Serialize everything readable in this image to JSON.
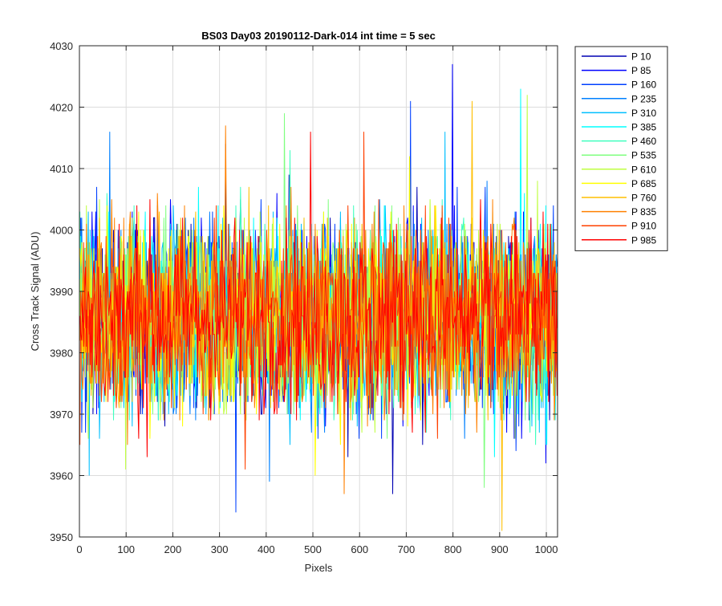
{
  "chart_data": {
    "type": "line",
    "title": "BS03 Day03 20190112-Dark-014 int time = 5 sec",
    "xlabel": "Pixels",
    "ylabel": "Cross Track Signal (ADU)",
    "xlim": [
      0,
      1024
    ],
    "ylim": [
      3950,
      4030
    ],
    "x_ticks": [
      0,
      100,
      200,
      300,
      400,
      500,
      600,
      700,
      800,
      900,
      1000
    ],
    "y_ticks": [
      3950,
      3960,
      3970,
      3980,
      3990,
      4000,
      4010,
      4020,
      4030
    ],
    "grid": true,
    "legend_position": "outside-right",
    "x_range": [
      1,
      1024
    ],
    "mean_level": 3986,
    "typical_range": [
      3970,
      4003
    ],
    "series": [
      {
        "name": "P 10",
        "color": "#0000B3",
        "min": 3957,
        "max": 4014
      },
      {
        "name": "P 85",
        "color": "#0000FF",
        "min": 3962,
        "max": 4027
      },
      {
        "name": "P 160",
        "color": "#0040FF",
        "min": 3954,
        "max": 4021
      },
      {
        "name": "P 235",
        "color": "#0080FF",
        "min": 3959,
        "max": 4016
      },
      {
        "name": "P 310",
        "color": "#00BFFF",
        "min": 3960,
        "max": 4016
      },
      {
        "name": "P 385",
        "color": "#00FFFF",
        "min": 3963,
        "max": 4023
      },
      {
        "name": "P 460",
        "color": "#40FFBF",
        "min": 3965,
        "max": 4013
      },
      {
        "name": "P 535",
        "color": "#80FF80",
        "min": 3958,
        "max": 4019
      },
      {
        "name": "P 610",
        "color": "#BFFF40",
        "min": 3961,
        "max": 4022
      },
      {
        "name": "P 685",
        "color": "#FFFF00",
        "min": 3960,
        "max": 4012
      },
      {
        "name": "P 760",
        "color": "#FFBF00",
        "min": 3951,
        "max": 4021
      },
      {
        "name": "P 835",
        "color": "#FF8000",
        "min": 3957,
        "max": 4017
      },
      {
        "name": "P 910",
        "color": "#FF4000",
        "min": 3961,
        "max": 4016
      },
      {
        "name": "P 985",
        "color": "#FF0000",
        "min": 3963,
        "max": 4016
      }
    ]
  }
}
